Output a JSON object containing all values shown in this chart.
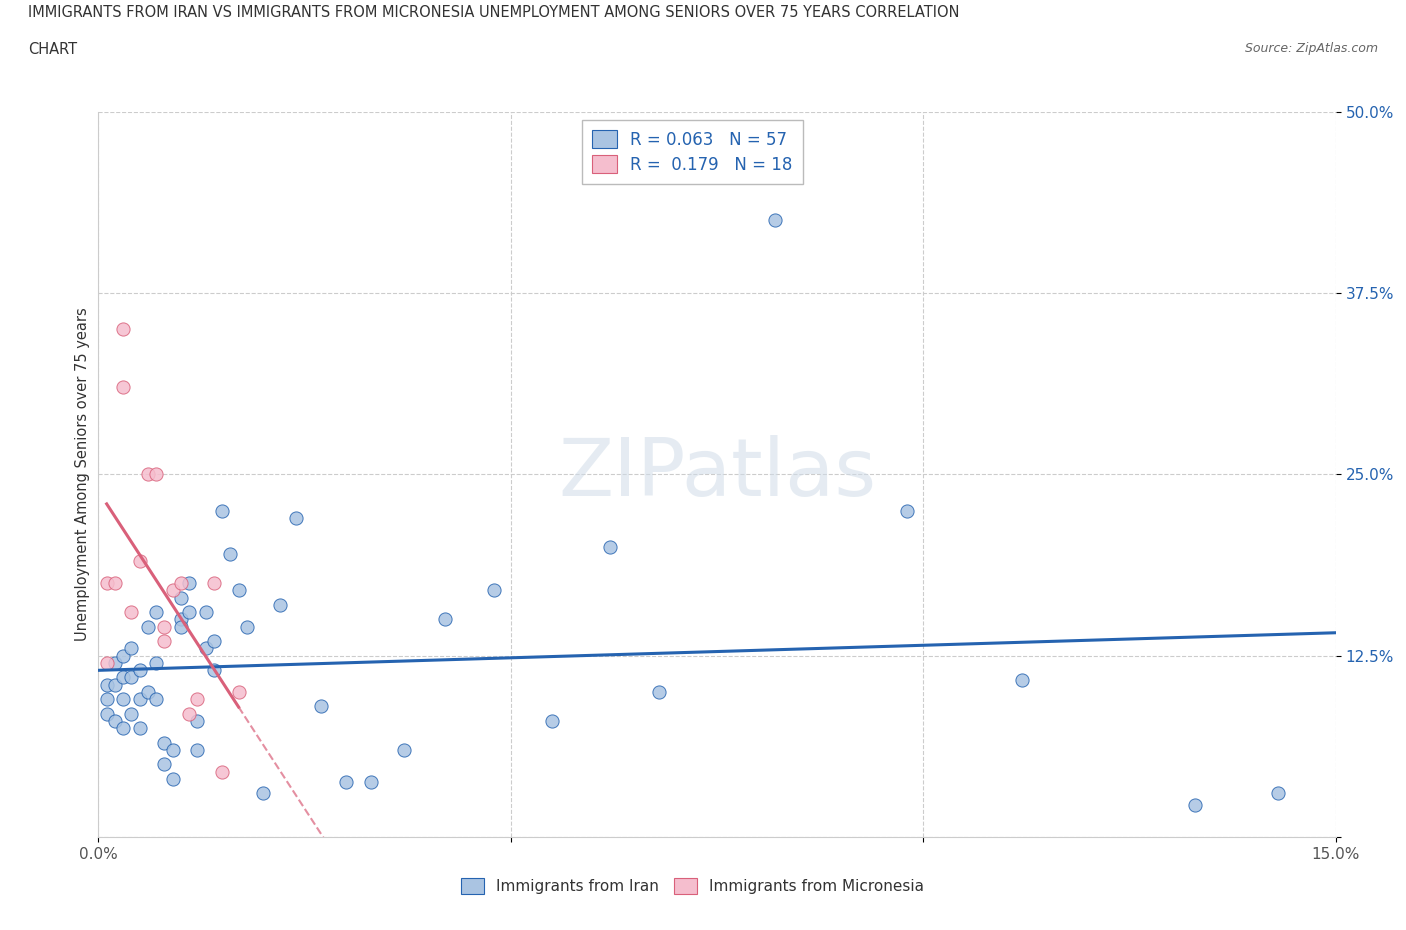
{
  "title_line1": "IMMIGRANTS FROM IRAN VS IMMIGRANTS FROM MICRONESIA UNEMPLOYMENT AMONG SENIORS OVER 75 YEARS CORRELATION",
  "title_line2": "CHART",
  "source": "Source: ZipAtlas.com",
  "ylabel": "Unemployment Among Seniors over 75 years",
  "xlim": [
    0,
    0.15
  ],
  "ylim": [
    0,
    0.5
  ],
  "xticks": [
    0.0,
    0.05,
    0.1,
    0.15
  ],
  "xticklabels": [
    "0.0%",
    "",
    "",
    "15.0%"
  ],
  "yticks": [
    0.0,
    0.125,
    0.25,
    0.375,
    0.5
  ],
  "yticklabels": [
    "",
    "12.5%",
    "25.0%",
    "37.5%",
    "50.0%"
  ],
  "iran_R": 0.063,
  "iran_N": 57,
  "micronesia_R": 0.179,
  "micronesia_N": 18,
  "iran_color": "#aac4e2",
  "iran_line_color": "#2563b0",
  "micronesia_color": "#f5bece",
  "micronesia_line_color": "#d9607a",
  "watermark": "ZIPatlas",
  "iran_x": [
    0.001,
    0.001,
    0.001,
    0.002,
    0.002,
    0.002,
    0.003,
    0.003,
    0.003,
    0.003,
    0.004,
    0.004,
    0.004,
    0.005,
    0.005,
    0.005,
    0.006,
    0.006,
    0.007,
    0.007,
    0.007,
    0.008,
    0.008,
    0.009,
    0.009,
    0.01,
    0.01,
    0.01,
    0.011,
    0.011,
    0.012,
    0.012,
    0.013,
    0.013,
    0.014,
    0.014,
    0.015,
    0.016,
    0.017,
    0.018,
    0.02,
    0.022,
    0.024,
    0.027,
    0.03,
    0.033,
    0.037,
    0.042,
    0.048,
    0.055,
    0.062,
    0.068,
    0.082,
    0.098,
    0.112,
    0.133,
    0.143
  ],
  "iran_y": [
    0.105,
    0.095,
    0.085,
    0.12,
    0.105,
    0.08,
    0.125,
    0.11,
    0.095,
    0.075,
    0.13,
    0.11,
    0.085,
    0.115,
    0.095,
    0.075,
    0.145,
    0.1,
    0.155,
    0.12,
    0.095,
    0.065,
    0.05,
    0.06,
    0.04,
    0.165,
    0.15,
    0.145,
    0.175,
    0.155,
    0.08,
    0.06,
    0.155,
    0.13,
    0.135,
    0.115,
    0.225,
    0.195,
    0.17,
    0.145,
    0.03,
    0.16,
    0.22,
    0.09,
    0.038,
    0.038,
    0.06,
    0.15,
    0.17,
    0.08,
    0.2,
    0.1,
    0.425,
    0.225,
    0.108,
    0.022,
    0.03
  ],
  "micronesia_x": [
    0.001,
    0.001,
    0.002,
    0.003,
    0.003,
    0.004,
    0.005,
    0.006,
    0.007,
    0.008,
    0.008,
    0.009,
    0.01,
    0.011,
    0.012,
    0.014,
    0.015,
    0.017
  ],
  "micronesia_y": [
    0.12,
    0.175,
    0.175,
    0.31,
    0.35,
    0.155,
    0.19,
    0.25,
    0.25,
    0.145,
    0.135,
    0.17,
    0.175,
    0.085,
    0.095,
    0.175,
    0.045,
    0.1
  ]
}
